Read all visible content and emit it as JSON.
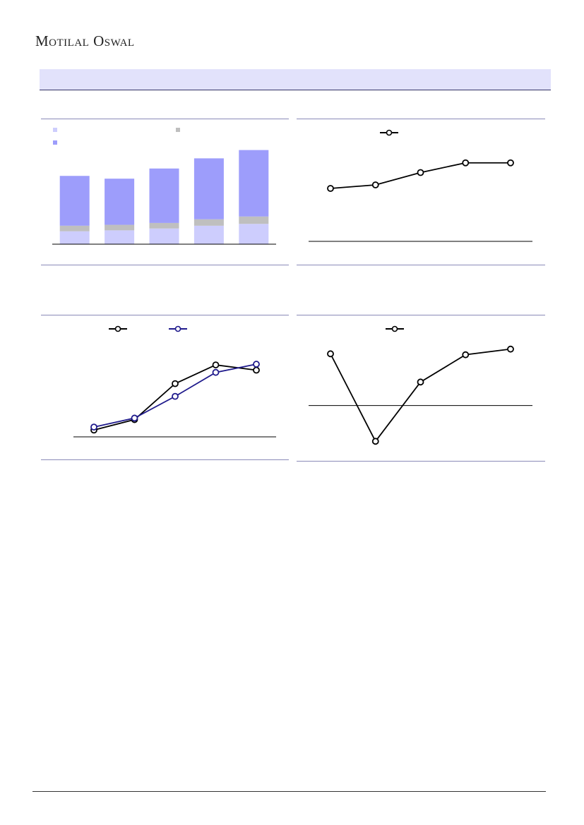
{
  "header": {
    "brand_main": "Motilal",
    "brand_second": "Oswal"
  },
  "colors": {
    "band": "#e2e2fb",
    "rule": "#8a8ab8",
    "seg_light": "#cdcdfd",
    "seg_gray": "#bfbfbf",
    "seg_dark": "#9d9dfb",
    "line_black": "#000000",
    "line_navy": "#1f1a8c"
  },
  "chart_data": [
    {
      "type": "bar",
      "stacked": true,
      "categories": [
        "",
        "",
        "",
        "",
        ""
      ],
      "series": [
        {
          "values": [
            14,
            15,
            17,
            20,
            22
          ]
        },
        {
          "values": [
            6,
            6,
            6,
            7,
            8
          ]
        },
        {
          "values": [
            54,
            50,
            59,
            66,
            72
          ]
        }
      ],
      "ylim": [
        0,
        104
      ]
    },
    {
      "type": "line",
      "x": [
        1,
        2,
        3,
        4,
        5
      ],
      "series": [
        {
          "values": [
            60,
            64,
            78,
            89,
            89
          ]
        }
      ],
      "ylim": [
        0,
        120
      ]
    },
    {
      "type": "line",
      "x": [
        1,
        2,
        3,
        4,
        5
      ],
      "series": [
        {
          "values": [
            10,
            24,
            72,
            97,
            90
          ]
        },
        {
          "values": [
            14,
            26,
            55,
            87,
            98
          ]
        }
      ],
      "ylim": [
        0,
        115
      ]
    },
    {
      "type": "line",
      "x": [
        1,
        2,
        3,
        4,
        5
      ],
      "series": [
        {
          "values": [
            55,
            -38,
            25,
            54,
            60
          ]
        }
      ],
      "ylim": [
        -55,
        80
      ]
    }
  ]
}
